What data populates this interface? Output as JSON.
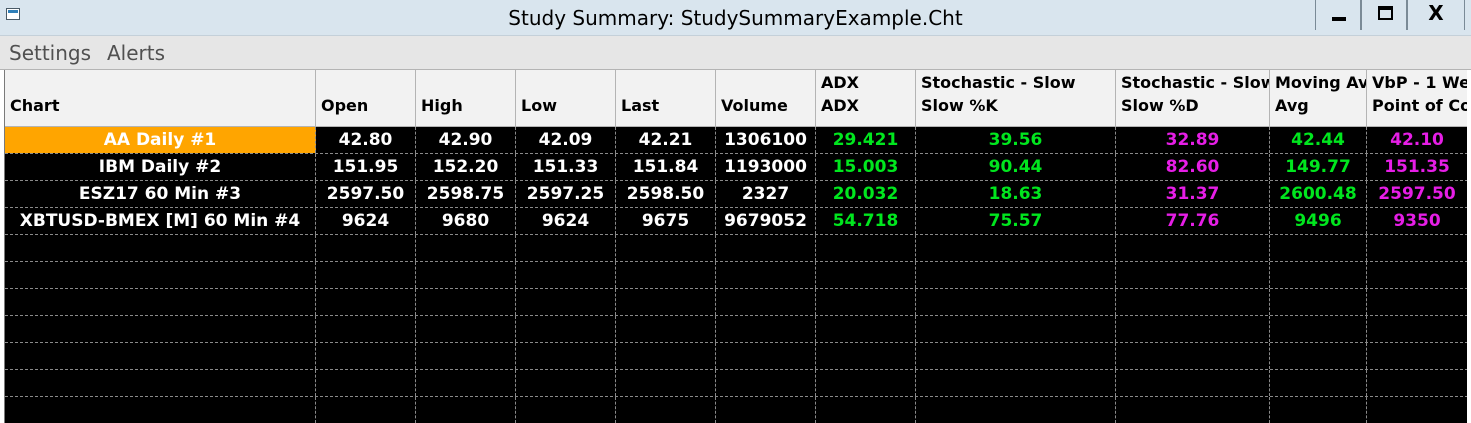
{
  "window": {
    "title": "Study Summary: StudySummaryExample.Cht",
    "controls": {
      "minimize": "minimize",
      "maximize": "maximize",
      "close": "X"
    }
  },
  "menu": {
    "items": [
      "Settings",
      "Alerts"
    ]
  },
  "colors": {
    "selected_row_bg": "#ffa500",
    "study_green": "#00e61e",
    "study_magenta": "#e61ee6",
    "grid_bg": "#000000"
  },
  "columns": [
    {
      "line1": "",
      "line2": "Chart"
    },
    {
      "line1": "",
      "line2": "Open"
    },
    {
      "line1": "",
      "line2": "High"
    },
    {
      "line1": "",
      "line2": "Low"
    },
    {
      "line1": "",
      "line2": "Last"
    },
    {
      "line1": "",
      "line2": "Volume"
    },
    {
      "line1": "ADX",
      "line2": "ADX"
    },
    {
      "line1": "Stochastic - Slow",
      "line2": "Slow %K"
    },
    {
      "line1": "Stochastic - Slow",
      "line2": "Slow %D"
    },
    {
      "line1": "Moving Ave",
      "line2": "Avg"
    },
    {
      "line1": "VbP - 1 We",
      "line2": "Point of Co"
    }
  ],
  "rows": [
    {
      "chart": "AA  Daily  #1",
      "selected": true,
      "values": [
        "42.80",
        "42.90",
        "42.09",
        "42.21",
        "1306100",
        "29.421",
        "39.56",
        "32.89",
        "42.44",
        "42.10"
      ]
    },
    {
      "chart": "IBM  Daily  #2",
      "selected": false,
      "values": [
        "151.95",
        "152.20",
        "151.33",
        "151.84",
        "1193000",
        "15.003",
        "90.44",
        "82.60",
        "149.77",
        "151.35"
      ]
    },
    {
      "chart": "ESZ17  60 Min   #3",
      "selected": false,
      "values": [
        "2597.50",
        "2598.75",
        "2597.25",
        "2598.50",
        "2327",
        "20.032",
        "18.63",
        "31.37",
        "2600.48",
        "2597.50"
      ]
    },
    {
      "chart": "XBTUSD-BMEX [M]  60 Min   #4",
      "selected": false,
      "values": [
        "9624",
        "9680",
        "9624",
        "9675",
        "9679052",
        "54.718",
        "75.57",
        "77.76",
        "9496",
        "9350"
      ]
    }
  ],
  "empty_rows": 7
}
